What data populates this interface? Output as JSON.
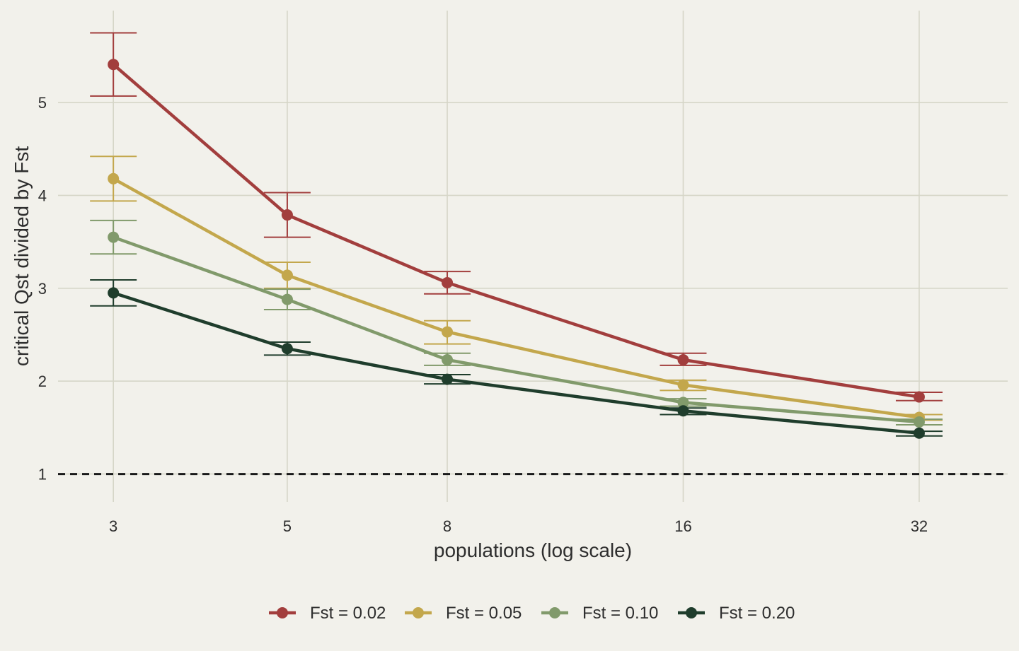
{
  "chart_data": {
    "type": "line",
    "xlabel": "populations (log scale)",
    "ylabel": "critical Qst divided by Fst",
    "x_scale": "log",
    "x": [
      3,
      5,
      8,
      16,
      32
    ],
    "x_tick_labels": [
      "3",
      "5",
      "8",
      "16",
      "32"
    ],
    "y_ticks": [
      1,
      2,
      3,
      4,
      5
    ],
    "y_tick_labels": [
      "1",
      "2",
      "3",
      "4",
      "5"
    ],
    "ylim": [
      0.7,
      5.99
    ],
    "xlim": [
      2.55,
      41.5
    ],
    "grid": true,
    "reference_line": {
      "y": 1,
      "style": "dashed",
      "color": "#1a1a1a"
    },
    "legend_position": "bottom",
    "series": [
      {
        "name": "Fst = 0.02",
        "color": "#a23e3d",
        "values": [
          5.41,
          3.79,
          3.06,
          2.23,
          1.83
        ],
        "err_low": [
          5.07,
          3.55,
          2.94,
          2.17,
          1.79
        ],
        "err_high": [
          5.75,
          4.03,
          3.18,
          2.3,
          1.88
        ]
      },
      {
        "name": "Fst = 0.05",
        "color": "#c3a74c",
        "values": [
          4.18,
          3.14,
          2.53,
          1.96,
          1.61
        ],
        "err_low": [
          3.94,
          3.0,
          2.4,
          1.9,
          1.58
        ],
        "err_high": [
          4.42,
          3.28,
          2.65,
          2.01,
          1.64
        ]
      },
      {
        "name": "Fst = 0.10",
        "color": "#819a6b",
        "values": [
          3.55,
          2.88,
          2.23,
          1.77,
          1.56
        ],
        "err_low": [
          3.37,
          2.77,
          2.17,
          1.73,
          1.53
        ],
        "err_high": [
          3.73,
          2.99,
          2.3,
          1.81,
          1.59
        ]
      },
      {
        "name": "Fst = 0.20",
        "color": "#1f3d2c",
        "values": [
          2.95,
          2.35,
          2.02,
          1.68,
          1.44
        ],
        "err_low": [
          2.81,
          2.28,
          1.97,
          1.64,
          1.41
        ],
        "err_high": [
          3.09,
          2.42,
          2.07,
          1.71,
          1.46
        ]
      }
    ]
  }
}
